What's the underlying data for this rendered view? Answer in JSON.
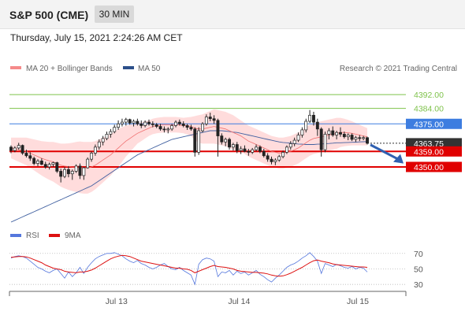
{
  "header": {
    "title": "S&P 500 (CME)",
    "timeframe": "30 MIN"
  },
  "timestamp": "Thursday, July 15, 2021 2:24:26 AM CET",
  "legend": {
    "ma20": "MA 20 + Bollinger Bands",
    "ma50": "MA 50",
    "credit": "Research © 2021 Trading Central"
  },
  "rsi_legend": {
    "rsi": "RSI",
    "ma9": "9MA"
  },
  "colors": {
    "resistance_green": "#7ec24a",
    "pivot_blue": "#3d7de0",
    "support_red": "#e00000",
    "last_price": "#333333",
    "ma20_band": "#ffd0d0",
    "ma20_line": "#f07070",
    "ma50_line": "#4060a0",
    "rsi_line": "#5577dd",
    "rsi_ma_line": "#dd1111",
    "arrow": "#3060b0"
  },
  "chart_data": [
    {
      "type": "candlestick",
      "title": "S&P 500 (CME) 30 MIN",
      "x_ticks": [
        "Jul 13",
        "Jul 14",
        "Jul 15"
      ],
      "ylim": [
        4318,
        4403
      ],
      "levels": [
        {
          "label": "4392.00",
          "value": 4392.0,
          "kind": "resistance"
        },
        {
          "label": "4384.00",
          "value": 4384.0,
          "kind": "resistance"
        },
        {
          "label": "4375.00",
          "value": 4375.0,
          "kind": "pivot"
        },
        {
          "label": "4363.75",
          "value": 4363.75,
          "kind": "last"
        },
        {
          "label": "4359.00",
          "value": 4359.0,
          "kind": "support"
        },
        {
          "label": "4350.00",
          "value": 4350.0,
          "kind": "support"
        }
      ],
      "ohlc": [
        [
          4361.5,
          4362.5,
          4358.0,
          4359.5
        ],
        [
          4359.5,
          4362.0,
          4358.5,
          4361.0
        ],
        [
          4361.0,
          4364.0,
          4360.0,
          4362.5
        ],
        [
          4362.5,
          4363.0,
          4357.0,
          4358.0
        ],
        [
          4358.0,
          4360.0,
          4355.5,
          4356.5
        ],
        [
          4356.5,
          4358.5,
          4353.5,
          4355.0
        ],
        [
          4355.0,
          4356.0,
          4351.0,
          4352.0
        ],
        [
          4352.0,
          4354.5,
          4350.5,
          4353.5
        ],
        [
          4353.5,
          4355.0,
          4351.0,
          4351.5
        ],
        [
          4351.5,
          4353.0,
          4349.0,
          4350.0
        ],
        [
          4350.0,
          4352.5,
          4348.5,
          4351.5
        ],
        [
          4351.5,
          4353.0,
          4350.0,
          4352.5
        ],
        [
          4352.5,
          4353.0,
          4346.5,
          4347.5
        ],
        [
          4347.5,
          4349.0,
          4341.0,
          4344.5
        ],
        [
          4344.5,
          4350.0,
          4343.5,
          4348.5
        ],
        [
          4348.5,
          4350.5,
          4344.0,
          4346.0
        ],
        [
          4346.0,
          4348.5,
          4342.5,
          4347.5
        ],
        [
          4347.5,
          4351.5,
          4346.5,
          4350.5
        ],
        [
          4350.5,
          4352.0,
          4343.0,
          4345.0
        ],
        [
          4345.0,
          4350.0,
          4342.5,
          4349.5
        ],
        [
          4349.5,
          4355.5,
          4349.0,
          4354.5
        ],
        [
          4354.5,
          4359.0,
          4353.0,
          4358.0
        ],
        [
          4358.0,
          4363.0,
          4356.5,
          4361.5
        ],
        [
          4361.5,
          4366.0,
          4360.0,
          4364.5
        ],
        [
          4364.5,
          4368.0,
          4362.5,
          4366.5
        ],
        [
          4366.5,
          4370.5,
          4365.5,
          4369.0
        ],
        [
          4369.0,
          4372.0,
          4367.0,
          4370.5
        ],
        [
          4370.5,
          4374.5,
          4369.5,
          4373.0
        ],
        [
          4373.0,
          4377.0,
          4371.5,
          4375.0
        ],
        [
          4375.0,
          4378.0,
          4373.5,
          4376.0
        ],
        [
          4376.0,
          4378.5,
          4374.0,
          4377.5
        ],
        [
          4377.5,
          4378.0,
          4374.5,
          4375.5
        ],
        [
          4375.5,
          4377.5,
          4373.5,
          4376.5
        ],
        [
          4376.5,
          4378.0,
          4374.0,
          4375.0
        ],
        [
          4375.0,
          4377.0,
          4372.5,
          4374.0
        ],
        [
          4374.0,
          4377.0,
          4373.0,
          4376.0
        ],
        [
          4376.0,
          4377.5,
          4374.0,
          4375.0
        ],
        [
          4375.0,
          4376.5,
          4373.0,
          4374.5
        ],
        [
          4374.5,
          4375.5,
          4372.5,
          4373.5
        ],
        [
          4373.5,
          4375.0,
          4371.0,
          4372.0
        ],
        [
          4372.0,
          4373.5,
          4370.0,
          4371.5
        ],
        [
          4371.5,
          4373.0,
          4369.5,
          4372.0
        ],
        [
          4372.0,
          4375.0,
          4371.0,
          4374.0
        ],
        [
          4374.0,
          4377.0,
          4373.0,
          4376.0
        ],
        [
          4376.0,
          4377.5,
          4374.0,
          4375.0
        ],
        [
          4375.0,
          4376.5,
          4373.0,
          4374.0
        ],
        [
          4374.0,
          4375.0,
          4371.5,
          4373.0
        ],
        [
          4373.0,
          4374.5,
          4371.0,
          4372.0
        ],
        [
          4372.0,
          4373.0,
          4356.0,
          4358.5
        ],
        [
          4358.5,
          4373.0,
          4357.0,
          4371.0
        ],
        [
          4371.0,
          4376.0,
          4370.0,
          4375.0
        ],
        [
          4375.0,
          4380.5,
          4374.0,
          4379.0
        ],
        [
          4379.0,
          4381.5,
          4376.5,
          4378.0
        ],
        [
          4378.0,
          4380.0,
          4375.0,
          4377.0
        ],
        [
          4377.0,
          4378.0,
          4356.0,
          4368.0
        ],
        [
          4368.0,
          4369.5,
          4363.0,
          4364.5
        ],
        [
          4364.5,
          4367.0,
          4362.0,
          4366.0
        ],
        [
          4366.0,
          4367.0,
          4360.0,
          4361.5
        ],
        [
          4361.5,
          4364.0,
          4359.5,
          4363.0
        ],
        [
          4363.0,
          4364.5,
          4358.0,
          4359.5
        ],
        [
          4359.5,
          4362.0,
          4357.5,
          4360.5
        ],
        [
          4360.5,
          4362.5,
          4358.5,
          4359.0
        ],
        [
          4359.0,
          4360.5,
          4356.5,
          4358.5
        ],
        [
          4358.5,
          4361.0,
          4357.5,
          4360.0
        ],
        [
          4360.0,
          4363.0,
          4359.0,
          4361.5
        ],
        [
          4361.5,
          4362.5,
          4358.0,
          4359.0
        ],
        [
          4359.0,
          4360.5,
          4355.5,
          4356.5
        ],
        [
          4356.5,
          4358.0,
          4353.0,
          4354.5
        ],
        [
          4354.5,
          4356.0,
          4351.5,
          4353.0
        ],
        [
          4353.0,
          4355.0,
          4351.0,
          4354.0
        ],
        [
          4354.0,
          4357.0,
          4353.0,
          4356.0
        ],
        [
          4356.0,
          4359.5,
          4355.0,
          4358.5
        ],
        [
          4358.5,
          4362.5,
          4357.5,
          4361.5
        ],
        [
          4361.5,
          4365.0,
          4360.0,
          4363.5
        ],
        [
          4363.5,
          4367.0,
          4362.0,
          4365.5
        ],
        [
          4365.5,
          4370.0,
          4364.5,
          4368.5
        ],
        [
          4368.5,
          4373.0,
          4367.0,
          4371.5
        ],
        [
          4371.5,
          4378.0,
          4370.0,
          4376.5
        ],
        [
          4376.5,
          4383.0,
          4375.5,
          4380.0
        ],
        [
          4380.0,
          4382.0,
          4374.0,
          4376.0
        ],
        [
          4376.0,
          4378.0,
          4368.0,
          4372.0
        ],
        [
          4372.0,
          4373.0,
          4356.0,
          4360.0
        ],
        [
          4360.0,
          4370.5,
          4358.5,
          4369.0
        ],
        [
          4369.0,
          4372.5,
          4366.0,
          4371.0
        ],
        [
          4371.0,
          4373.5,
          4367.5,
          4368.5
        ],
        [
          4368.5,
          4371.0,
          4366.0,
          4370.0
        ],
        [
          4370.0,
          4373.0,
          4367.5,
          4369.0
        ],
        [
          4369.0,
          4370.5,
          4366.5,
          4367.5
        ],
        [
          4367.5,
          4369.5,
          4365.5,
          4368.5
        ],
        [
          4368.5,
          4369.5,
          4365.0,
          4366.0
        ],
        [
          4366.0,
          4368.0,
          4364.5,
          4367.0
        ],
        [
          4367.0,
          4368.5,
          4365.0,
          4366.5
        ],
        [
          4366.5,
          4368.0,
          4365.5,
          4367.0
        ],
        [
          4367.0,
          4367.5,
          4363.0,
          4363.75
        ]
      ],
      "ma20": [
        4361.0,
        4360.5,
        4360.0,
        4359.5,
        4359.0,
        4358.0,
        4357.0,
        4356.0,
        4355.0,
        4354.2,
        4353.5,
        4353.0,
        4352.0,
        4351.0,
        4350.5,
        4350.2,
        4350.0,
        4350.0,
        4349.8,
        4349.5,
        4349.5,
        4350.0,
        4351.0,
        4352.5,
        4354.0,
        4355.5,
        4357.0,
        4359.0,
        4361.0,
        4363.0,
        4365.0,
        4366.5,
        4368.0,
        4369.5,
        4370.5,
        4371.5,
        4372.5,
        4373.5,
        4374.0,
        4374.3,
        4374.5,
        4374.5,
        4374.5,
        4374.5,
        4374.3,
        4374.0,
        4373.8,
        4373.5,
        4372.5,
        4372.0,
        4372.0,
        4372.5,
        4373.0,
        4373.5,
        4373.0,
        4372.5,
        4372.0,
        4371.0,
        4370.0,
        4369.0,
        4368.0,
        4366.5,
        4365.0,
        4364.0,
        4363.0,
        4362.0,
        4361.0,
        4360.0,
        4359.0,
        4358.5,
        4358.0,
        4358.0,
        4358.5,
        4359.0,
        4360.0,
        4361.0,
        4362.5,
        4364.0,
        4365.5,
        4366.5,
        4367.0,
        4367.5,
        4368.0,
        4368.5,
        4369.0,
        4369.5,
        4370.0,
        4370.0,
        4369.8,
        4369.5,
        4369.0,
        4368.5,
        4368.0,
        4367.5
      ],
      "bb_width": [
        6,
        6.5,
        7,
        7.5,
        8,
        8.5,
        9,
        9.5,
        10,
        10.5,
        11,
        11.5,
        12,
        12.5,
        13,
        13.5,
        14,
        14.5,
        15,
        15,
        15,
        14.5,
        14,
        13.5,
        13,
        12.5,
        12,
        11.5,
        11,
        10,
        9,
        8,
        7,
        6,
        5.5,
        5,
        4.5,
        4.5,
        4.5,
        4.5,
        4.5,
        4.5,
        4.5,
        4.5,
        4.5,
        4.5,
        5,
        5.5,
        7,
        8,
        8.5,
        9,
        9.5,
        10,
        10,
        10,
        10,
        10,
        10,
        9.5,
        9,
        9,
        9,
        9,
        9,
        9,
        9,
        9,
        9,
        9,
        9,
        9,
        9,
        9,
        9,
        9,
        9,
        9,
        9,
        9,
        9,
        9,
        9,
        9,
        9,
        9,
        8.5,
        8,
        7.5,
        7,
        6.5,
        6,
        5.5,
        5
      ],
      "ma50": [
        4318.0,
        4319.0,
        4320.0,
        4321.0,
        4322.0,
        4323.0,
        4324.0,
        4325.0,
        4326.0,
        4327.0,
        4328.0,
        4329.0,
        4330.0,
        4331.0,
        4332.0,
        4333.0,
        4334.0,
        4335.0,
        4336.0,
        4337.0,
        4338.0,
        4339.0,
        4340.5,
        4342.0,
        4343.5,
        4345.0,
        4346.5,
        4348.0,
        4349.5,
        4351.0,
        4352.5,
        4354.0,
        4355.5,
        4357.0,
        4358.0,
        4359.0,
        4360.0,
        4361.0,
        4362.0,
        4363.0,
        4364.0,
        4365.0,
        4366.0,
        4366.5,
        4367.0,
        4367.5,
        4368.0,
        4368.5,
        4369.0,
        4369.5,
        4370.0,
        4370.5,
        4371.0,
        4371.0,
        4371.0,
        4371.0,
        4370.8,
        4370.5,
        4370.2,
        4370.0,
        4369.5,
        4369.0,
        4368.5,
        4368.0,
        4367.5,
        4367.0,
        4366.5,
        4366.0,
        4365.5,
        4365.0,
        4364.5,
        4364.2,
        4364.0,
        4363.8,
        4363.5,
        4363.3,
        4363.2,
        4363.0,
        4363.0,
        4363.0,
        4363.2,
        4363.3,
        4363.5,
        4363.6,
        4363.8,
        4364.0,
        4364.0,
        4364.1,
        4364.2,
        4364.3,
        4364.4,
        4364.5,
        4364.6,
        4364.7
      ],
      "target_arrow": {
        "from_value": 4363.75,
        "to_value": 4352.0
      }
    },
    {
      "type": "line",
      "title": "RSI",
      "ylim": [
        25,
        80
      ],
      "y_ticks": [
        70,
        50,
        30
      ],
      "series": [
        {
          "name": "RSI",
          "values": [
            64,
            66,
            67,
            66,
            64,
            60,
            56,
            52,
            50,
            47,
            45,
            48,
            50,
            44,
            38,
            46,
            40,
            45,
            52,
            44,
            52,
            58,
            63,
            66,
            68,
            70,
            70,
            71,
            69,
            67,
            63,
            60,
            58,
            61,
            57,
            55,
            52,
            50,
            52,
            55,
            57,
            53,
            50,
            49,
            52,
            48,
            45,
            42,
            30,
            56,
            62,
            64,
            63,
            60,
            40,
            46,
            45,
            48,
            42,
            47,
            44,
            46,
            42,
            45,
            48,
            43,
            40,
            36,
            33,
            38,
            42,
            47,
            52,
            55,
            57,
            60,
            64,
            67,
            71,
            66,
            60,
            44,
            57,
            55,
            53,
            56,
            54,
            52,
            51,
            53,
            50,
            52,
            51,
            46
          ]
        },
        {
          "name": "9MA",
          "values": [
            65,
            65.5,
            66,
            66,
            65.5,
            64,
            62,
            60,
            58,
            55,
            53,
            51,
            50,
            49,
            47,
            46,
            45.5,
            45,
            46,
            46,
            47,
            48.5,
            51,
            54,
            57,
            60,
            63,
            65,
            66.5,
            67.5,
            67,
            66,
            64,
            62,
            60,
            59,
            58,
            57,
            56,
            55,
            54,
            53,
            52,
            51,
            51,
            50,
            49.5,
            48,
            45,
            47,
            49,
            51,
            53,
            54.5,
            53,
            52.5,
            52,
            51,
            50,
            48,
            47,
            46.5,
            46,
            45.5,
            45.5,
            45,
            44.5,
            43.5,
            42,
            41,
            40.5,
            41,
            42.5,
            44.5,
            47,
            49.5,
            52,
            55,
            58,
            60.5,
            61.5,
            60,
            59,
            58,
            56.5,
            55.5,
            55,
            54.5,
            54,
            53.5,
            53,
            52.5,
            52.5,
            52
          ]
        }
      ]
    }
  ]
}
